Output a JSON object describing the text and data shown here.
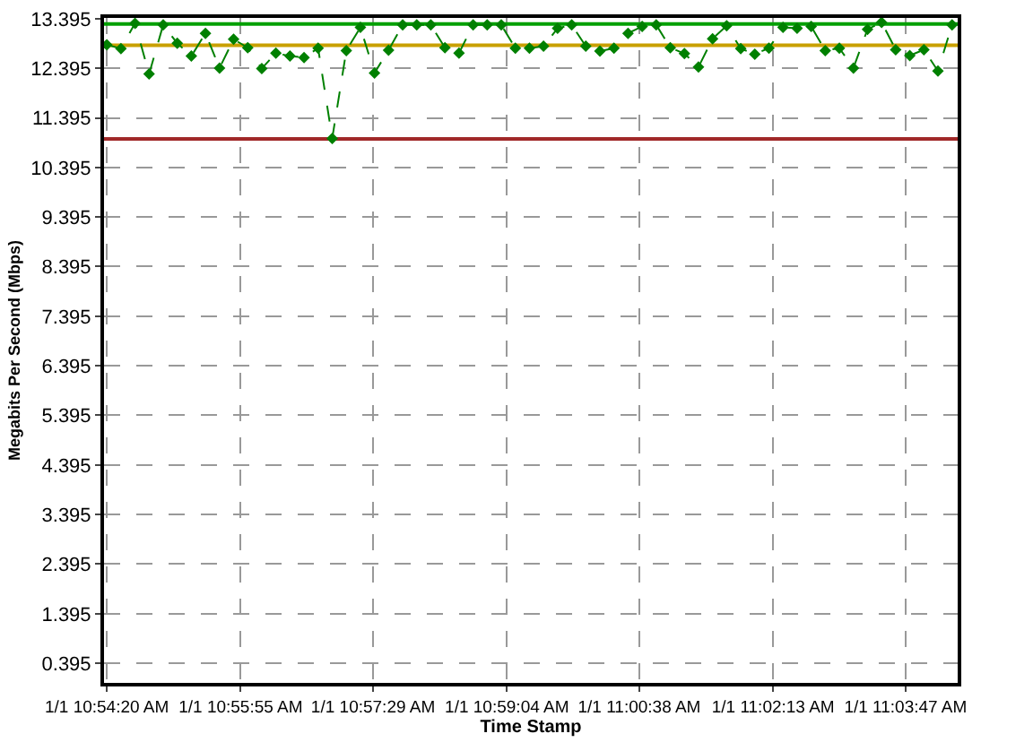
{
  "chart_data": {
    "type": "line",
    "xlabel": "Time Stamp",
    "ylabel": "Megabits Per Second (Mbps)",
    "x": [
      "--01-01T10:54:20",
      "--01-01T10:54:30",
      "--01-01T10:54:40",
      "--01-01T10:54:50",
      "--01-01T10:55:00",
      "--01-01T10:55:10",
      "--01-01T10:55:20",
      "--01-01T10:55:30",
      "--01-01T10:55:40",
      "--01-01T10:55:50",
      "--01-01T10:56:00",
      "--01-01T10:56:10",
      "--01-01T10:56:20",
      "--01-01T10:56:30",
      "--01-01T10:56:40",
      "--01-01T10:56:50",
      "--01-01T10:57:00",
      "--01-01T10:57:10",
      "--01-01T10:57:20",
      "--01-01T10:57:30",
      "--01-01T10:57:40",
      "--01-01T10:57:50",
      "--01-01T10:58:00",
      "--01-01T10:58:10",
      "--01-01T10:58:20",
      "--01-01T10:58:30",
      "--01-01T10:58:40",
      "--01-01T10:58:50",
      "--01-01T10:59:00",
      "--01-01T10:59:10",
      "--01-01T10:59:20",
      "--01-01T10:59:30",
      "--01-01T10:59:40",
      "--01-01T10:59:50",
      "--01-01T11:00:00",
      "--01-01T11:00:10",
      "--01-01T11:00:20",
      "--01-01T11:00:30",
      "--01-01T11:00:40",
      "--01-01T11:00:50",
      "--01-01T11:01:00",
      "--01-01T11:01:10",
      "--01-01T11:01:20",
      "--01-01T11:01:30",
      "--01-01T11:01:40",
      "--01-01T11:01:50",
      "--01-01T11:02:00",
      "--01-01T11:02:10",
      "--01-01T11:02:20",
      "--01-01T11:02:30",
      "--01-01T11:02:40",
      "--01-01T11:02:50",
      "--01-01T11:03:00",
      "--01-01T11:03:10",
      "--01-01T11:03:20",
      "--01-01T11:03:30",
      "--01-01T11:03:40",
      "--01-01T11:03:50",
      "--01-01T11:04:00",
      "--01-01T11:04:10",
      "--01-01T11:04:20"
    ],
    "series": [
      {
        "color": "#008000",
        "values": [
          12.87,
          12.79,
          13.3,
          12.28,
          13.27,
          12.9,
          12.64,
          13.1,
          12.4,
          12.98,
          12.81,
          12.39,
          12.7,
          12.64,
          12.61,
          12.8,
          10.98,
          12.75,
          13.22,
          12.3,
          12.76,
          13.27,
          13.27,
          13.27,
          12.81,
          12.7,
          13.27,
          13.27,
          13.27,
          12.8,
          12.8,
          12.84,
          13.2,
          13.27,
          12.84,
          12.74,
          12.8,
          13.1,
          13.24,
          13.27,
          12.81,
          12.69,
          12.42,
          12.99,
          13.25,
          12.79,
          12.68,
          12.8,
          13.22,
          13.2,
          13.24,
          12.75,
          12.8,
          12.4,
          13.18,
          13.32,
          12.77,
          12.65,
          12.77,
          12.34,
          13.27
        ]
      }
    ],
    "xlim": [
      "--01-01T10:54:18",
      "--01-01T11:04:24"
    ],
    "xticks": [
      {
        "value": "--01-01T10:54:20",
        "label": "1/1 10:54:20 AM"
      },
      {
        "value": "--01-01T10:55:55",
        "label": "1/1 10:55:55 AM"
      },
      {
        "value": "--01-01T10:57:29",
        "label": "1/1 10:57:29 AM"
      },
      {
        "value": "--01-01T10:59:04",
        "label": "1/1 10:59:04 AM"
      },
      {
        "value": "--01-01T11:00:38",
        "label": "1/1 11:00:38 AM"
      },
      {
        "value": "--01-01T11:02:13",
        "label": "1/1 11:02:13 AM"
      },
      {
        "value": "--01-01T11:03:47",
        "label": "1/1 11:03:47 AM"
      }
    ],
    "ylim": [
      0.0,
      13.41
    ],
    "yticks": [
      0.395,
      1.395,
      2.395,
      3.395,
      4.395,
      5.395,
      6.395,
      7.395,
      8.395,
      9.395,
      10.395,
      11.395,
      12.395,
      13.395
    ],
    "ref_lines": [
      {
        "axis": "y",
        "value": 13.29,
        "color": "#00a000"
      },
      {
        "axis": "y",
        "value": 12.86,
        "color": "#c8a000"
      },
      {
        "axis": "y",
        "value": 10.97,
        "color": "#a02828"
      }
    ],
    "grid": true,
    "marker": "diamond",
    "line_style": "dashed"
  }
}
